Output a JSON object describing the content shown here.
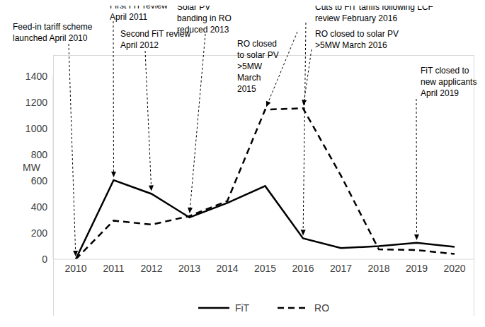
{
  "chart_data": {
    "type": "line",
    "categories": [
      "2010",
      "2011",
      "2012",
      "2013",
      "2014",
      "2015",
      "2016",
      "2017",
      "2018",
      "2019",
      "2020"
    ],
    "series": [
      {
        "name": "FiT",
        "color": "#000000",
        "line_style": "solid",
        "values": [
          0,
          605,
          500,
          320,
          430,
          560,
          160,
          85,
          100,
          125,
          95
        ]
      },
      {
        "name": "RO",
        "color": "#000000",
        "line_style": "dashed",
        "values": [
          0,
          295,
          265,
          330,
          445,
          1145,
          1155,
          640,
          75,
          70,
          40
        ]
      }
    ],
    "y_label": "MW",
    "ylim": [
      0,
      1400
    ],
    "yticks": [
      0,
      200,
      400,
      600,
      800,
      1000,
      1200,
      1400
    ],
    "grid": false,
    "legend": "bottom",
    "annotations": [
      {
        "text": [
          "Feed-in tariff scheme",
          "launched April 2010"
        ],
        "category": "2010",
        "series": "FiT"
      },
      {
        "text": [
          "First FiT review",
          "April 2011"
        ],
        "category": "2011",
        "series": "FiT"
      },
      {
        "text": [
          "Second FiT review",
          "April 2012"
        ],
        "category": "2012",
        "series": "FiT"
      },
      {
        "text": [
          "Solar PV",
          "banding in RO",
          "reduced 2013"
        ],
        "category": "2013",
        "series": "RO"
      },
      {
        "text": [
          "RO closed",
          "to solar PV",
          ">5MW",
          "March",
          "2015"
        ],
        "category": "2015",
        "series": "RO"
      },
      {
        "text": [
          "Cuts to FiT tariffs following LCF",
          "review February 2016"
        ],
        "category": "2016",
        "series": "FiT"
      },
      {
        "text": [
          "RO closed to solar PV",
          ">5MW March 2016"
        ],
        "category": "2016",
        "series": "RO"
      },
      {
        "text": [
          "FiT closed to",
          "new applicants",
          "April 2019"
        ],
        "category": "2019",
        "series": "FiT"
      }
    ]
  }
}
